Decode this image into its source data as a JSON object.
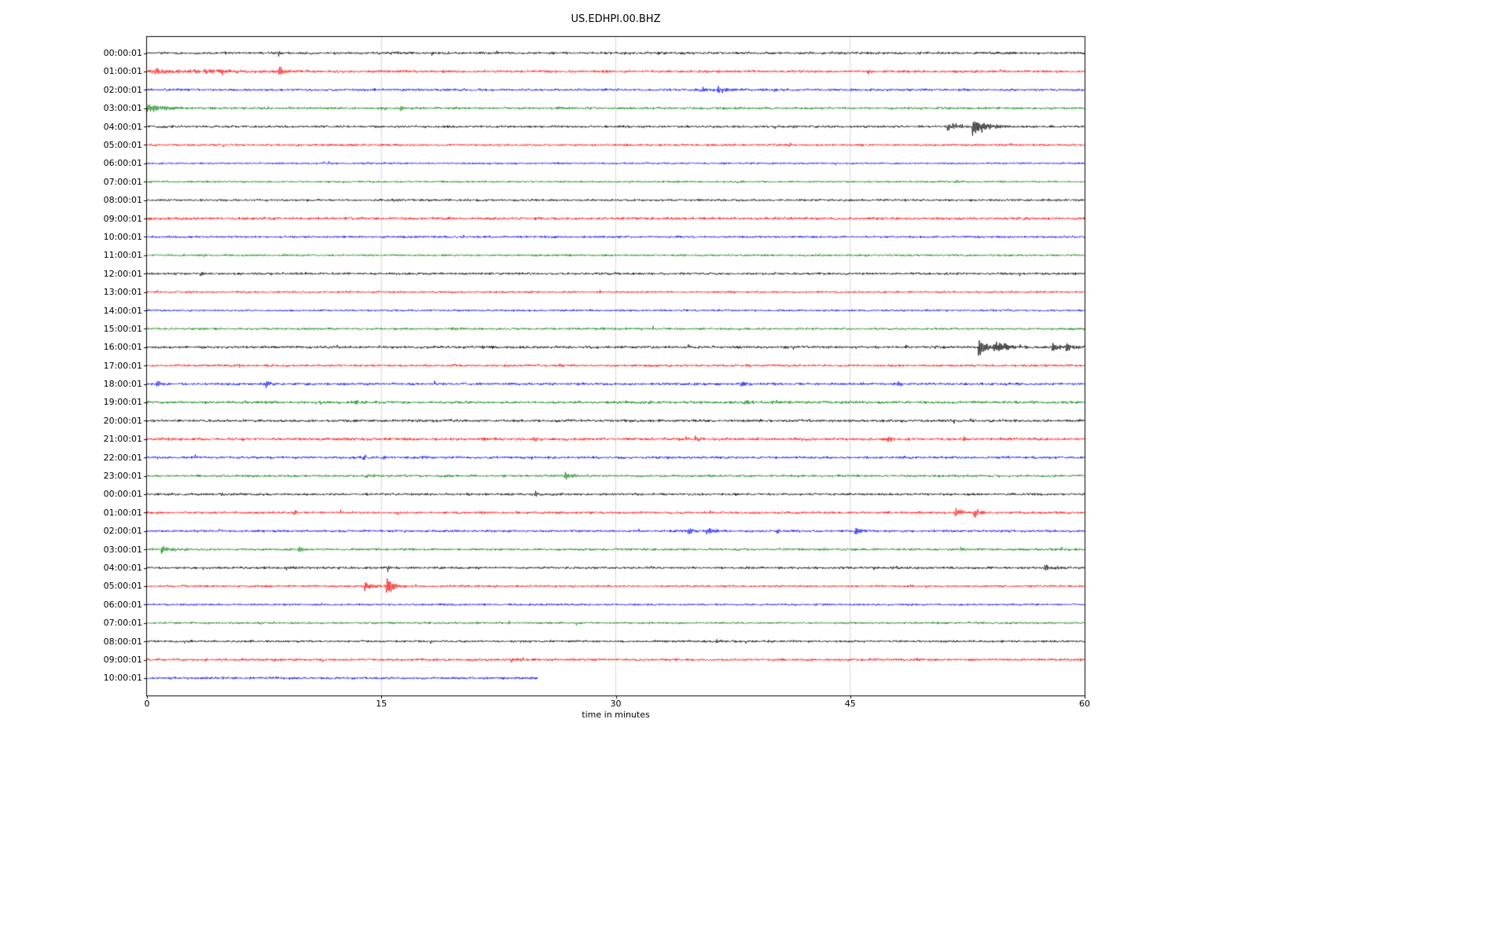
{
  "page": {
    "background": "#ffffff"
  },
  "chart_data": {
    "type": "line",
    "title": "US.EDHPI.00.BHZ",
    "xlabel": "time in minutes",
    "xlim": [
      0,
      60
    ],
    "xticks": [
      0,
      15,
      30,
      45,
      60
    ],
    "grid_minutes": [
      15,
      30,
      45
    ],
    "grid_color": "#cccccc",
    "spine_color": "#000000",
    "color_cycle": [
      "#000000",
      "#ff0000",
      "#0000ff",
      "#008000"
    ],
    "rows": [
      {
        "label": "00:00:01",
        "color": "#000000",
        "amp": 1.6,
        "end": 60,
        "events": [
          {
            "t": 8.4,
            "a": 7,
            "d": 0.15
          },
          {
            "t": 15.6,
            "a": 2.5,
            "d": 0.3
          },
          {
            "t": 22.3,
            "a": 2.5,
            "d": 0.3
          }
        ]
      },
      {
        "label": "01:00:01",
        "color": "#ff0000",
        "amp": 1.6,
        "end": 60,
        "events": [
          {
            "t": 0.1,
            "a": 3,
            "d": 4.5
          },
          {
            "t": 4.6,
            "a": 2.5,
            "d": 0.4
          },
          {
            "t": 8.4,
            "a": 13,
            "d": 0.2
          }
        ]
      },
      {
        "label": "02:00:01",
        "color": "#0000ff",
        "amp": 1.5,
        "end": 60,
        "events": [
          {
            "t": 35.4,
            "a": 5,
            "d": 0.5
          },
          {
            "t": 36.5,
            "a": 5,
            "d": 0.6
          },
          {
            "t": 40.1,
            "a": 2.5,
            "d": 0.4
          }
        ]
      },
      {
        "label": "03:00:01",
        "color": "#008000",
        "amp": 1.5,
        "end": 60,
        "events": [
          {
            "t": 0.0,
            "a": 5,
            "d": 1.8
          },
          {
            "t": 16.1,
            "a": 3,
            "d": 0.5
          }
        ]
      },
      {
        "label": "04:00:01",
        "color": "#000000",
        "amp": 1.5,
        "end": 60,
        "events": [
          {
            "t": 30.3,
            "a": 3.5,
            "d": 0.2
          },
          {
            "t": 51.2,
            "a": 6,
            "d": 0.8
          },
          {
            "t": 52.8,
            "a": 16,
            "d": 0.35
          },
          {
            "t": 53.4,
            "a": 5,
            "d": 0.8
          }
        ]
      },
      {
        "label": "05:00:01",
        "color": "#ff0000",
        "amp": 1.4,
        "end": 60,
        "events": [
          {
            "t": 11.2,
            "a": 2,
            "d": 0.4
          },
          {
            "t": 41.0,
            "a": 2,
            "d": 0.3
          }
        ]
      },
      {
        "label": "06:00:01",
        "color": "#0000ff",
        "amp": 1.2,
        "end": 60,
        "events": []
      },
      {
        "label": "07:00:01",
        "color": "#008000",
        "amp": 1.2,
        "end": 60,
        "events": []
      },
      {
        "label": "08:00:01",
        "color": "#000000",
        "amp": 1.4,
        "end": 60,
        "events": [
          {
            "t": 15.6,
            "a": 1.5,
            "d": 0.5
          }
        ]
      },
      {
        "label": "09:00:01",
        "color": "#ff0000",
        "amp": 1.7,
        "end": 60,
        "events": []
      },
      {
        "label": "10:00:01",
        "color": "#0000ff",
        "amp": 1.4,
        "end": 60,
        "events": []
      },
      {
        "label": "11:00:01",
        "color": "#008000",
        "amp": 1.3,
        "end": 60,
        "events": []
      },
      {
        "label": "12:00:01",
        "color": "#000000",
        "amp": 1.5,
        "end": 60,
        "events": [
          {
            "t": 3.4,
            "a": 2,
            "d": 0.4
          }
        ]
      },
      {
        "label": "13:00:01",
        "color": "#ff0000",
        "amp": 1.3,
        "end": 60,
        "events": []
      },
      {
        "label": "14:00:01",
        "color": "#0000ff",
        "amp": 1.3,
        "end": 60,
        "events": []
      },
      {
        "label": "15:00:01",
        "color": "#008000",
        "amp": 1.4,
        "end": 60,
        "events": [
          {
            "t": 19.5,
            "a": 2,
            "d": 0.4
          },
          {
            "t": 29.0,
            "a": 2,
            "d": 0.4
          }
        ]
      },
      {
        "label": "16:00:01",
        "color": "#000000",
        "amp": 1.7,
        "end": 60,
        "events": [
          {
            "t": 53.2,
            "a": 14,
            "d": 0.5
          },
          {
            "t": 54.2,
            "a": 6,
            "d": 1.2
          },
          {
            "t": 57.9,
            "a": 6,
            "d": 0.4
          },
          {
            "t": 58.8,
            "a": 6,
            "d": 0.5
          }
        ]
      },
      {
        "label": "17:00:01",
        "color": "#ff0000",
        "amp": 1.5,
        "end": 60,
        "events": [
          {
            "t": 19.4,
            "a": 3,
            "d": 0.2
          },
          {
            "t": 26.3,
            "a": 3.5,
            "d": 0.25
          },
          {
            "t": 38.3,
            "a": 2.5,
            "d": 0.3
          }
        ]
      },
      {
        "label": "18:00:01",
        "color": "#0000ff",
        "amp": 1.6,
        "end": 60,
        "events": [
          {
            "t": 0.6,
            "a": 4.5,
            "d": 0.3
          },
          {
            "t": 7.6,
            "a": 4.5,
            "d": 0.3
          },
          {
            "t": 38.0,
            "a": 3.5,
            "d": 0.3
          },
          {
            "t": 48.0,
            "a": 3,
            "d": 0.4
          }
        ]
      },
      {
        "label": "19:00:01",
        "color": "#008000",
        "amp": 1.7,
        "end": 60,
        "events": [
          {
            "t": 10.7,
            "a": 3.5,
            "d": 0.25
          },
          {
            "t": 13.3,
            "a": 3.5,
            "d": 0.25
          },
          {
            "t": 38.2,
            "a": 3.5,
            "d": 0.3
          },
          {
            "t": 40.0,
            "a": 2.5,
            "d": 0.3
          }
        ]
      },
      {
        "label": "20:00:01",
        "color": "#000000",
        "amp": 1.7,
        "end": 60,
        "events": [
          {
            "t": 30.8,
            "a": 2,
            "d": 0.4
          }
        ]
      },
      {
        "label": "21:00:01",
        "color": "#ff0000",
        "amp": 1.8,
        "end": 60,
        "events": [
          {
            "t": 24.6,
            "a": 4.5,
            "d": 0.2
          },
          {
            "t": 35.0,
            "a": 3.5,
            "d": 0.3
          },
          {
            "t": 47.4,
            "a": 4.5,
            "d": 0.25
          }
        ]
      },
      {
        "label": "22:00:01",
        "color": "#0000ff",
        "amp": 1.6,
        "end": 60,
        "events": [
          {
            "t": 13.8,
            "a": 3.5,
            "d": 0.25
          },
          {
            "t": 15.1,
            "a": 3,
            "d": 0.2
          },
          {
            "t": 17.6,
            "a": 3,
            "d": 0.25
          }
        ]
      },
      {
        "label": "23:00:01",
        "color": "#008000",
        "amp": 1.5,
        "end": 60,
        "events": [
          {
            "t": 14.0,
            "a": 3.5,
            "d": 0.25
          },
          {
            "t": 19.0,
            "a": 2.5,
            "d": 0.3
          },
          {
            "t": 26.7,
            "a": 5,
            "d": 0.5
          }
        ]
      },
      {
        "label": "00:00:01",
        "color": "#000000",
        "amp": 1.5,
        "end": 60,
        "events": [
          {
            "t": 20.4,
            "a": 2.5,
            "d": 0.3
          },
          {
            "t": 24.8,
            "a": 4,
            "d": 0.3
          }
        ]
      },
      {
        "label": "01:00:01",
        "color": "#ff0000",
        "amp": 1.5,
        "end": 60,
        "events": [
          {
            "t": 9.4,
            "a": 4.5,
            "d": 0.2
          },
          {
            "t": 51.7,
            "a": 6,
            "d": 0.5
          },
          {
            "t": 52.9,
            "a": 7,
            "d": 0.4
          }
        ]
      },
      {
        "label": "02:00:01",
        "color": "#0000ff",
        "amp": 1.5,
        "end": 60,
        "events": [
          {
            "t": 34.6,
            "a": 5.5,
            "d": 0.35
          },
          {
            "t": 35.8,
            "a": 5.5,
            "d": 0.4
          },
          {
            "t": 40.3,
            "a": 3,
            "d": 0.3
          },
          {
            "t": 45.3,
            "a": 6.5,
            "d": 0.3
          }
        ]
      },
      {
        "label": "03:00:01",
        "color": "#008000",
        "amp": 1.5,
        "end": 60,
        "events": [
          {
            "t": 0.9,
            "a": 6,
            "d": 0.6
          },
          {
            "t": 9.7,
            "a": 4.5,
            "d": 0.25
          },
          {
            "t": 52.0,
            "a": 3.5,
            "d": 0.3
          }
        ]
      },
      {
        "label": "04:00:01",
        "color": "#000000",
        "amp": 1.5,
        "end": 60,
        "events": [
          {
            "t": 8.8,
            "a": 2.5,
            "d": 0.3
          },
          {
            "t": 15.4,
            "a": 6,
            "d": 0.15
          },
          {
            "t": 47.7,
            "a": 3.5,
            "d": 0.25
          },
          {
            "t": 57.4,
            "a": 4,
            "d": 0.5
          }
        ]
      },
      {
        "label": "05:00:01",
        "color": "#ff0000",
        "amp": 1.4,
        "end": 60,
        "events": [
          {
            "t": 13.9,
            "a": 5,
            "d": 0.6
          },
          {
            "t": 15.3,
            "a": 14,
            "d": 0.4
          }
        ]
      },
      {
        "label": "06:00:01",
        "color": "#0000ff",
        "amp": 1.3,
        "end": 60,
        "events": []
      },
      {
        "label": "07:00:01",
        "color": "#008000",
        "amp": 1.3,
        "end": 60,
        "events": []
      },
      {
        "label": "08:00:01",
        "color": "#000000",
        "amp": 1.4,
        "end": 60,
        "events": [
          {
            "t": 36.4,
            "a": 1.8,
            "d": 0.5
          }
        ]
      },
      {
        "label": "09:00:01",
        "color": "#ff0000",
        "amp": 1.6,
        "end": 60,
        "events": [
          {
            "t": 23.3,
            "a": 2,
            "d": 0.4
          }
        ]
      },
      {
        "label": "10:00:01",
        "color": "#0000ff",
        "amp": 1.5,
        "end": 25,
        "events": []
      }
    ]
  }
}
